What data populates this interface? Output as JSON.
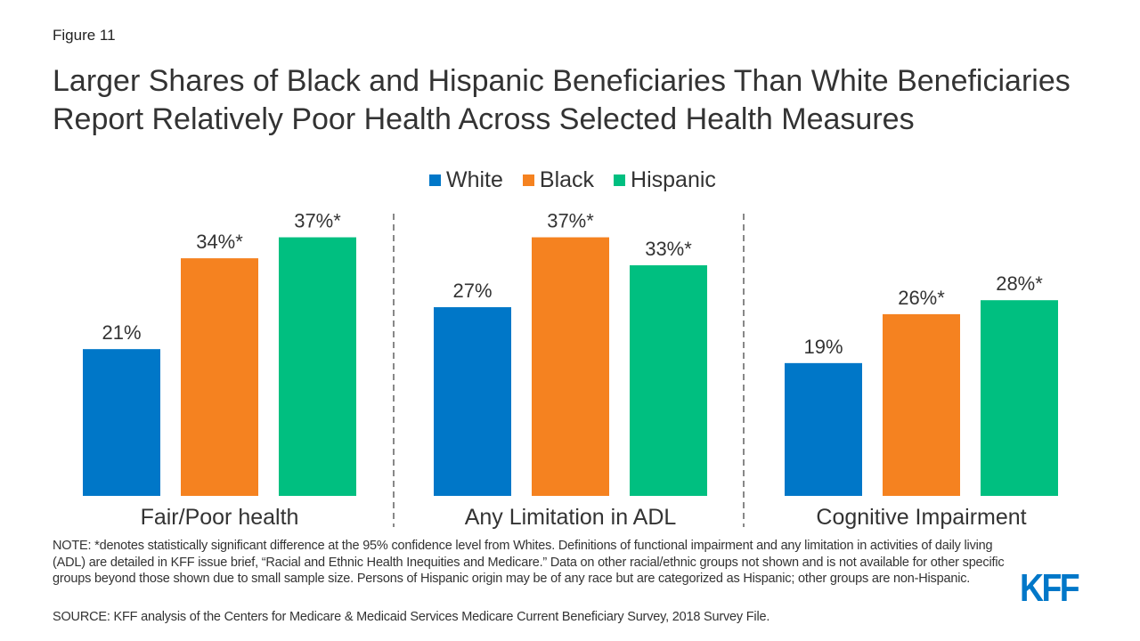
{
  "figure_label": "Figure 11",
  "colors": {
    "White": "#0077c8",
    "Black": "#f58220",
    "Hispanic": "#00bf80"
  },
  "chart_data": {
    "type": "bar",
    "title": "Larger Shares of Black and Hispanic Beneficiaries Than White Beneficiaries Report Relatively Poor Health Across Selected Health Measures",
    "categories": [
      "Fair/Poor health",
      "Any Limitation in ADL",
      "Cognitive Impairment"
    ],
    "series": [
      {
        "name": "White",
        "values": [
          21,
          27,
          19
        ],
        "labels": [
          "21%",
          "27%",
          "19%"
        ]
      },
      {
        "name": "Black",
        "values": [
          34,
          37,
          26
        ],
        "labels": [
          "34%*",
          "37%*",
          "26%*"
        ]
      },
      {
        "name": "Hispanic",
        "values": [
          37,
          33,
          28
        ],
        "labels": [
          "37%*",
          "33%*",
          "28%*"
        ]
      }
    ],
    "ylim": [
      0,
      40
    ],
    "grid": false,
    "legend": "top-center",
    "unit": "%"
  },
  "note": "NOTE: *denotes statistically significant difference at the 95% confidence level from Whites. Definitions of functional impairment and any limitation in activities of daily living (ADL) are detailed in KFF issue brief, “Racial and Ethnic Health Inequities and Medicare.” Data on other racial/ethnic groups not shown and is not available for other specific groups beyond those shown due to small sample size. Persons of Hispanic origin may be of any race but are categorized as Hispanic; other groups are non-Hispanic.",
  "source": "SOURCE: KFF analysis of the Centers for Medicare & Medicaid Services Medicare Current Beneficiary Survey, 2018 Survey File.",
  "logo": "KFF"
}
